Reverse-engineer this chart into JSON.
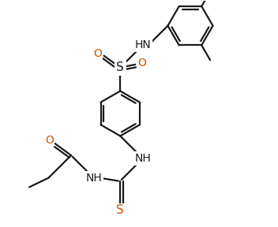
{
  "bg_color": "#ffffff",
  "line_color": "#1a1a1a",
  "color_O": "#cc5500",
  "color_S": "#cc5500",
  "lw": 1.6,
  "figsize": [
    3.52,
    2.88
  ],
  "dpi": 100,
  "xlim": [
    0,
    8.8
  ],
  "ylim": [
    0,
    7.2
  ]
}
